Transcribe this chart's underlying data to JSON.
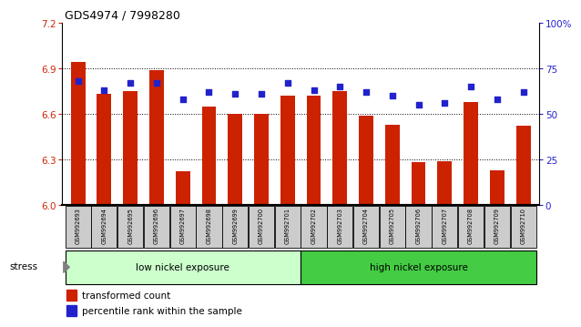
{
  "title": "GDS4974 / 7998280",
  "samples": [
    "GSM992693",
    "GSM992694",
    "GSM992695",
    "GSM992696",
    "GSM992697",
    "GSM992698",
    "GSM992699",
    "GSM992700",
    "GSM992701",
    "GSM992702",
    "GSM992703",
    "GSM992704",
    "GSM992705",
    "GSM992706",
    "GSM992707",
    "GSM992708",
    "GSM992709",
    "GSM992710"
  ],
  "bar_values": [
    6.94,
    6.73,
    6.75,
    6.89,
    6.22,
    6.65,
    6.6,
    6.6,
    6.72,
    6.72,
    6.75,
    6.59,
    6.53,
    6.28,
    6.29,
    6.68,
    6.23,
    6.52
  ],
  "percentile_values": [
    68,
    63,
    67,
    67,
    58,
    62,
    61,
    61,
    67,
    63,
    65,
    62,
    60,
    55,
    56,
    65,
    58,
    62
  ],
  "ylim_left": [
    6.0,
    7.2
  ],
  "ylim_right": [
    0,
    100
  ],
  "yticks_left": [
    6.0,
    6.3,
    6.6,
    6.9,
    7.2
  ],
  "yticks_right": [
    0,
    25,
    50,
    75,
    100
  ],
  "ytick_labels_right": [
    "0",
    "25",
    "50",
    "75",
    "100%"
  ],
  "grid_values": [
    6.3,
    6.6,
    6.9
  ],
  "bar_color": "#cc2200",
  "percentile_color": "#2222cc",
  "group1_label": "low nickel exposure",
  "group2_label": "high nickel exposure",
  "group1_count": 9,
  "stress_label": "stress",
  "legend_bar": "transformed count",
  "legend_pct": "percentile rank within the sample",
  "group1_color": "#ccffcc",
  "group2_color": "#44cc44",
  "xlabel_bg": "#cccccc",
  "bg_color": "#ffffff"
}
